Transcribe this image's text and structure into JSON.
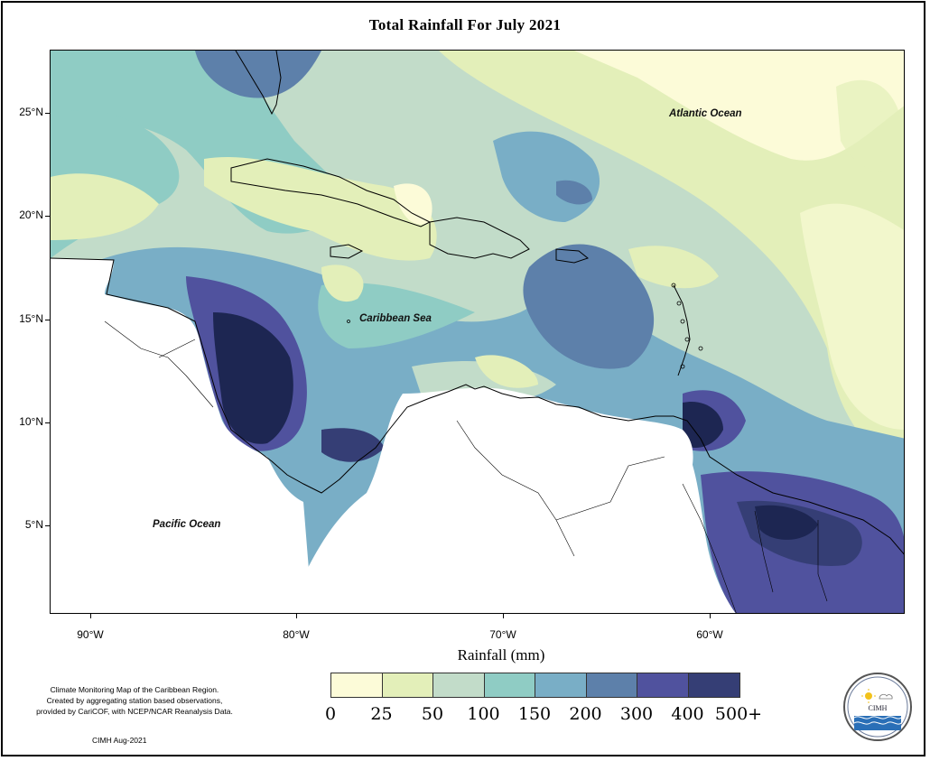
{
  "title": "Total Rainfall For July 2021",
  "map": {
    "region": "Caribbean Region",
    "labels": {
      "atlantic": "Atlantic Ocean",
      "caribbean": "Caribbean Sea",
      "pacific": "Pacific Ocean"
    }
  },
  "axes": {
    "y_ticks": [
      "25°N",
      "20°N",
      "15°N",
      "10°N",
      "5°N"
    ],
    "x_ticks": [
      "90°W",
      "80°W",
      "70°W",
      "60°W"
    ],
    "x_title": "Rainfall (mm)"
  },
  "legend": {
    "title": "Rainfall (mm)",
    "labels": [
      "0",
      "25",
      "50",
      "100",
      "150",
      "200",
      "300",
      "400",
      "500+"
    ],
    "colors": [
      "#fcfbd8",
      "#e3efb9",
      "#c2dcc9",
      "#8fccc4",
      "#79aec6",
      "#5d80aa",
      "#50529e",
      "#353e75",
      "#1d2652"
    ]
  },
  "notes": {
    "lines": [
      "Climate Monitoring Map of the Caribbean Region.",
      "Created by aggregating station based observations,",
      "provided by CariCOF, with NCEP/NCAR Reanalysis Data."
    ],
    "credit": "CIMH Aug-2021"
  },
  "logo": {
    "text": "CIMH",
    "arc_text": "Caribbean Institute for Meteorology and Hydrology"
  }
}
